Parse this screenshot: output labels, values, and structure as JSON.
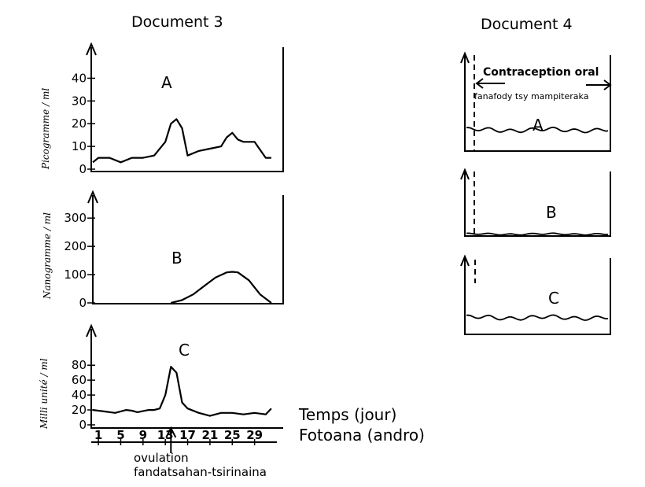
{
  "doc3": {
    "title": "Document 3",
    "time_label": "Temps (jour)",
    "time_label_mg": "Fotoana (andro)",
    "ovulation_label": "ovulation",
    "ovulation_label_mg": "fandatsahan-tsirinaina",
    "x_ticks": [
      "1",
      "5",
      "9",
      "13",
      "17",
      "21",
      "25",
      "29"
    ],
    "x_range": [
      1,
      33
    ],
    "ovulation_day": 14
  },
  "doc4": {
    "title": "Document 4",
    "contraception_label": "Contraception  oral",
    "contraception_label_mg": "fanafody tsy mampiteraka",
    "panels": [
      {
        "letter": "A",
        "level": 0.22
      },
      {
        "letter": "B",
        "level": 0.03
      },
      {
        "letter": "C",
        "level": 0.22
      }
    ]
  },
  "chart_data": [
    {
      "type": "line",
      "letter": "A",
      "ylabel": "Picogramme / ml",
      "yticks": [
        0,
        10,
        20,
        30,
        40
      ],
      "ylim": [
        0,
        45
      ],
      "x": [
        0,
        1,
        3,
        5,
        7,
        9,
        11,
        13,
        14,
        15,
        16,
        17,
        19,
        21,
        23,
        24,
        25,
        26,
        27,
        29,
        31,
        32
      ],
      "values": [
        3,
        5,
        5,
        3,
        5,
        5,
        6,
        12,
        20,
        22,
        18,
        6,
        8,
        9,
        10,
        14,
        16,
        13,
        12,
        12,
        5,
        5
      ]
    },
    {
      "type": "line",
      "letter": "B",
      "ylabel": "Nanogramme / ml",
      "yticks": [
        0,
        100,
        200,
        300
      ],
      "ylim": [
        0,
        320
      ],
      "x": [
        14,
        16,
        18,
        20,
        22,
        24,
        25,
        26,
        28,
        30,
        32
      ],
      "values": [
        0,
        10,
        30,
        60,
        90,
        108,
        110,
        108,
        80,
        30,
        0
      ]
    },
    {
      "type": "line",
      "letter": "C",
      "ylabel": "Milli unité / ml",
      "yticks": [
        0,
        20,
        40,
        60,
        80
      ],
      "ylim": [
        0,
        95
      ],
      "x": [
        0,
        2,
        4,
        6,
        7,
        8,
        10,
        11,
        12,
        13,
        14,
        15,
        16,
        17,
        19,
        21,
        23,
        25,
        27,
        29,
        31,
        32
      ],
      "values": [
        20,
        18,
        16,
        20,
        19,
        17,
        20,
        20,
        22,
        40,
        78,
        70,
        30,
        22,
        16,
        12,
        16,
        16,
        14,
        16,
        14,
        22
      ]
    }
  ]
}
